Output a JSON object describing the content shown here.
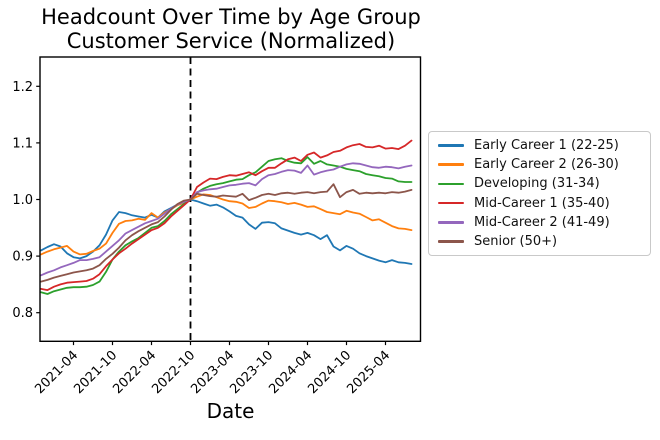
{
  "title_line1": "Headcount Over Time by Age Group",
  "title_line2": "Customer Service (Normalized)",
  "chart_data": {
    "type": "line",
    "title": "Headcount Over Time by Age Group",
    "subtitle": "Customer Service (Normalized)",
    "xlabel": "Date",
    "ylabel": "",
    "grid": false,
    "legend_position": "right",
    "ylim": [
      0.745,
      1.26
    ],
    "y_ticks": [
      0.8,
      0.9,
      1.0,
      1.1,
      1.2
    ],
    "x_ticks": [
      {
        "i": 5,
        "label": "2021-04"
      },
      {
        "i": 11,
        "label": "2021-10"
      },
      {
        "i": 17,
        "label": "2022-04"
      },
      {
        "i": 23,
        "label": "2022-10"
      },
      {
        "i": 29,
        "label": "2023-04"
      },
      {
        "i": 35,
        "label": "2023-10"
      },
      {
        "i": 41,
        "label": "2024-04"
      },
      {
        "i": 47,
        "label": "2024-10"
      },
      {
        "i": 53,
        "label": "2025-04"
      }
    ],
    "normalization_vline": {
      "i": 23,
      "date": "2022-10",
      "style": "dashed",
      "color": "#000000"
    },
    "x": [
      "2020-11",
      "2020-12",
      "2021-01",
      "2021-02",
      "2021-03",
      "2021-04",
      "2021-05",
      "2021-06",
      "2021-07",
      "2021-08",
      "2021-09",
      "2021-10",
      "2021-11",
      "2021-12",
      "2022-01",
      "2022-02",
      "2022-03",
      "2022-04",
      "2022-05",
      "2022-06",
      "2022-07",
      "2022-08",
      "2022-09",
      "2022-10",
      "2022-11",
      "2022-12",
      "2023-01",
      "2023-02",
      "2023-03",
      "2023-04",
      "2023-05",
      "2023-06",
      "2023-07",
      "2023-08",
      "2023-09",
      "2023-10",
      "2023-11",
      "2023-12",
      "2024-01",
      "2024-02",
      "2024-03",
      "2024-04",
      "2024-05",
      "2024-06",
      "2024-07",
      "2024-08",
      "2024-09",
      "2024-10",
      "2024-11",
      "2024-12",
      "2025-01",
      "2025-02",
      "2025-03",
      "2025-04",
      "2025-05",
      "2025-06",
      "2025-07",
      "2025-08"
    ],
    "series": [
      {
        "name": "Early Career 1 (22-25)",
        "color": "#1f77b4",
        "values": [
          0.91,
          0.916,
          0.921,
          0.917,
          0.905,
          0.898,
          0.896,
          0.9,
          0.908,
          0.919,
          0.938,
          0.963,
          0.978,
          0.976,
          0.972,
          0.97,
          0.968,
          0.973,
          0.968,
          0.979,
          0.985,
          0.991,
          0.995,
          1.0,
          0.997,
          0.993,
          0.989,
          0.991,
          0.986,
          0.979,
          0.971,
          0.968,
          0.956,
          0.948,
          0.959,
          0.96,
          0.958,
          0.949,
          0.945,
          0.941,
          0.938,
          0.941,
          0.937,
          0.93,
          0.937,
          0.917,
          0.91,
          0.918,
          0.913,
          0.905,
          0.9,
          0.896,
          0.892,
          0.889,
          0.893,
          0.889,
          0.888,
          0.886
        ]
      },
      {
        "name": "Early Career 2 (26-30)",
        "color": "#ff7f0e",
        "values": [
          0.903,
          0.908,
          0.912,
          0.915,
          0.918,
          0.908,
          0.903,
          0.904,
          0.909,
          0.913,
          0.922,
          0.941,
          0.957,
          0.962,
          0.963,
          0.966,
          0.964,
          0.976,
          0.968,
          0.977,
          0.983,
          0.99,
          0.994,
          1.0,
          1.005,
          1.009,
          1.008,
          1.004,
          1.0,
          0.997,
          0.996,
          0.993,
          0.985,
          0.987,
          0.993,
          0.998,
          0.997,
          0.995,
          0.992,
          0.994,
          0.991,
          0.987,
          0.988,
          0.983,
          0.978,
          0.976,
          0.974,
          0.98,
          0.977,
          0.975,
          0.969,
          0.963,
          0.965,
          0.959,
          0.953,
          0.949,
          0.948,
          0.946
        ]
      },
      {
        "name": "Developing (31-34)",
        "color": "#2ca02c",
        "values": [
          0.836,
          0.833,
          0.838,
          0.841,
          0.844,
          0.845,
          0.845,
          0.846,
          0.849,
          0.855,
          0.872,
          0.894,
          0.908,
          0.919,
          0.926,
          0.932,
          0.941,
          0.95,
          0.953,
          0.962,
          0.974,
          0.983,
          0.992,
          1.0,
          1.012,
          1.019,
          1.024,
          1.027,
          1.029,
          1.032,
          1.035,
          1.036,
          1.043,
          1.048,
          1.058,
          1.068,
          1.071,
          1.073,
          1.068,
          1.065,
          1.064,
          1.075,
          1.063,
          1.068,
          1.062,
          1.06,
          1.058,
          1.054,
          1.052,
          1.05,
          1.045,
          1.043,
          1.041,
          1.038,
          1.037,
          1.032,
          1.031,
          1.031
        ]
      },
      {
        "name": "Mid-Career 1 (35-40)",
        "color": "#d62728",
        "values": [
          0.842,
          0.84,
          0.846,
          0.85,
          0.853,
          0.854,
          0.855,
          0.856,
          0.86,
          0.868,
          0.882,
          0.894,
          0.905,
          0.913,
          0.922,
          0.93,
          0.938,
          0.946,
          0.95,
          0.958,
          0.97,
          0.98,
          0.99,
          1.0,
          1.022,
          1.03,
          1.037,
          1.036,
          1.04,
          1.043,
          1.042,
          1.045,
          1.048,
          1.043,
          1.05,
          1.056,
          1.056,
          1.064,
          1.071,
          1.074,
          1.068,
          1.079,
          1.083,
          1.074,
          1.078,
          1.084,
          1.086,
          1.092,
          1.096,
          1.098,
          1.093,
          1.092,
          1.095,
          1.09,
          1.091,
          1.089,
          1.095,
          1.104
        ]
      },
      {
        "name": "Mid-Career 2 (41-49)",
        "color": "#9467bd",
        "values": [
          0.866,
          0.871,
          0.875,
          0.88,
          0.884,
          0.888,
          0.893,
          0.893,
          0.895,
          0.898,
          0.908,
          0.918,
          0.928,
          0.94,
          0.946,
          0.952,
          0.958,
          0.962,
          0.966,
          0.975,
          0.984,
          0.991,
          0.996,
          1.0,
          1.013,
          1.016,
          1.018,
          1.019,
          1.022,
          1.025,
          1.026,
          1.028,
          1.029,
          1.025,
          1.036,
          1.043,
          1.045,
          1.049,
          1.052,
          1.051,
          1.047,
          1.06,
          1.044,
          1.048,
          1.051,
          1.053,
          1.058,
          1.062,
          1.064,
          1.063,
          1.06,
          1.057,
          1.056,
          1.058,
          1.057,
          1.055,
          1.058,
          1.06
        ]
      },
      {
        "name": "Senior (50+)",
        "color": "#8c564b",
        "values": [
          0.855,
          0.858,
          0.862,
          0.865,
          0.868,
          0.871,
          0.873,
          0.875,
          0.878,
          0.884,
          0.895,
          0.904,
          0.915,
          0.928,
          0.937,
          0.944,
          0.95,
          0.956,
          0.96,
          0.97,
          0.982,
          0.992,
          0.998,
          1.0,
          1.01,
          1.008,
          1.006,
          1.005,
          1.007,
          1.006,
          1.005,
          1.01,
          0.999,
          1.003,
          1.008,
          1.01,
          1.008,
          1.011,
          1.012,
          1.01,
          1.012,
          1.013,
          1.011,
          1.013,
          1.014,
          1.027,
          1.004,
          1.013,
          1.017,
          1.01,
          1.012,
          1.011,
          1.012,
          1.011,
          1.013,
          1.012,
          1.014,
          1.017
        ]
      }
    ]
  }
}
